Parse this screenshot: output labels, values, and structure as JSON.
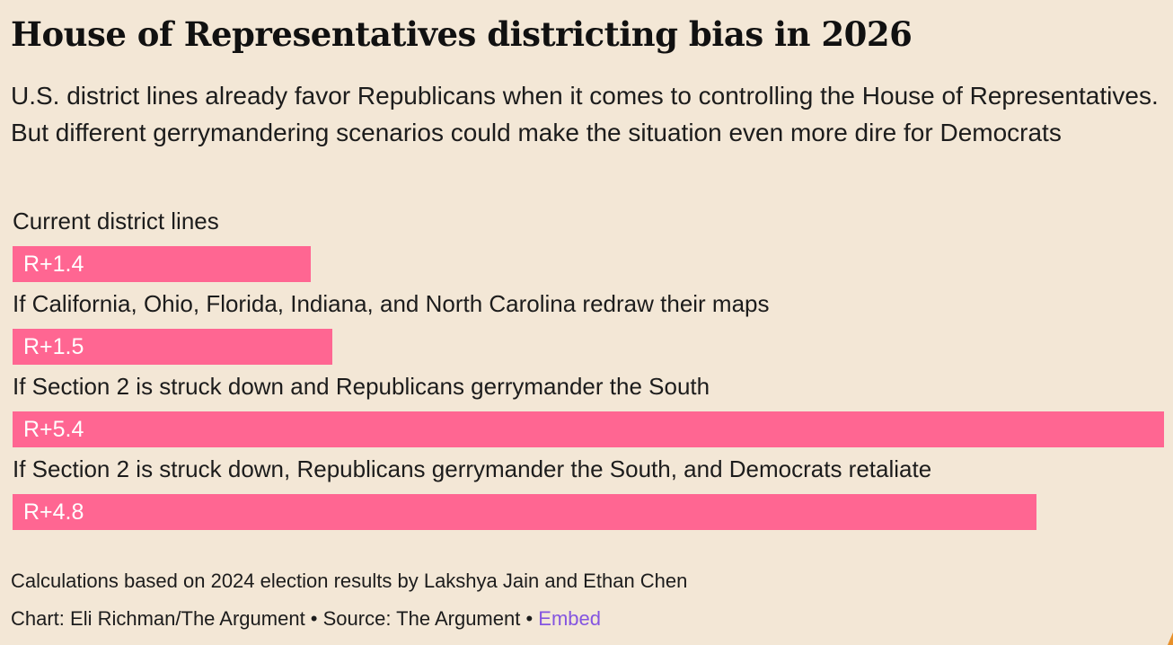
{
  "title": "House of Representatives districting bias in 2026",
  "subtitle": "U.S. district lines already favor Republicans when it comes to controlling the House of Representatives. But different gerrymandering scenarios could make the situation even more dire for Democrats",
  "chart_data": {
    "type": "bar",
    "orientation": "horizontal",
    "categories": [
      "Current district lines",
      "If California, Ohio, Florida, Indiana, and North Carolina redraw their maps",
      "If Section 2 is struck down and Republicans gerrymander the South",
      "If Section 2 is struck down, Republicans gerrymander the South, and Democrats retaliate"
    ],
    "values": [
      1.4,
      1.5,
      5.4,
      4.8
    ],
    "value_labels": [
      "R+1.4",
      "R+1.5",
      "R+5.4",
      "R+4.8"
    ],
    "xlim": [
      0,
      5.4
    ],
    "bar_color": "#ff6692",
    "grid": false,
    "legend": "none"
  },
  "footer": {
    "note": "Calculations based on 2024 election results by Lakshya Jain and Ethan Chen",
    "credits": "Chart: Eli Richman/The Argument • Source: The Argument • ",
    "embed_label": "Embed"
  }
}
